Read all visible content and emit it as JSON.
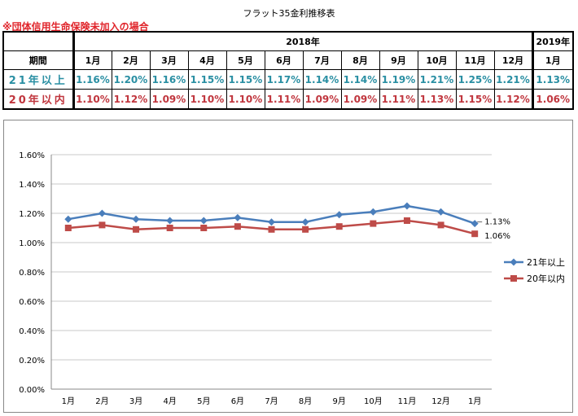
{
  "title": "フラット35金利推移表",
  "note": "※団体信用生命保険未加入の場合",
  "table": {
    "year_2018": "2018年",
    "year_2019": "2019年",
    "period_label": "期間",
    "months": [
      "1月",
      "2月",
      "3月",
      "4月",
      "5月",
      "6月",
      "7月",
      "8月",
      "9月",
      "10月",
      "11月",
      "12月",
      "1月"
    ],
    "rows": [
      {
        "label": "21年以上",
        "values": [
          "1.16%",
          "1.20%",
          "1.16%",
          "1.15%",
          "1.15%",
          "1.17%",
          "1.14%",
          "1.14%",
          "1.19%",
          "1.21%",
          "1.25%",
          "1.21%",
          "1.13%"
        ]
      },
      {
        "label": "20年以内",
        "values": [
          "1.10%",
          "1.12%",
          "1.09%",
          "1.10%",
          "1.10%",
          "1.11%",
          "1.09%",
          "1.09%",
          "1.11%",
          "1.13%",
          "1.15%",
          "1.12%",
          "1.06%"
        ]
      }
    ]
  },
  "chart_data": {
    "type": "line",
    "categories": [
      "1月",
      "2月",
      "3月",
      "4月",
      "5月",
      "6月",
      "7月",
      "8月",
      "9月",
      "10月",
      "11月",
      "12月",
      "1月"
    ],
    "series": [
      {
        "name": "21年以上",
        "color": "#4a7ebb",
        "marker": "diamond",
        "values": [
          1.16,
          1.2,
          1.16,
          1.15,
          1.15,
          1.17,
          1.14,
          1.14,
          1.19,
          1.21,
          1.25,
          1.21,
          1.13
        ],
        "end_label": "1.13%"
      },
      {
        "name": "20年以内",
        "color": "#be4b48",
        "marker": "square",
        "values": [
          1.1,
          1.12,
          1.09,
          1.1,
          1.1,
          1.11,
          1.09,
          1.09,
          1.11,
          1.13,
          1.15,
          1.12,
          1.06
        ],
        "end_label": "1.06%"
      }
    ],
    "ylim": [
      0,
      1.6
    ],
    "yticks": [
      "0.00%",
      "0.20%",
      "0.40%",
      "0.60%",
      "0.80%",
      "1.00%",
      "1.20%",
      "1.40%",
      "1.60%"
    ],
    "grid": true,
    "legend": "right"
  }
}
